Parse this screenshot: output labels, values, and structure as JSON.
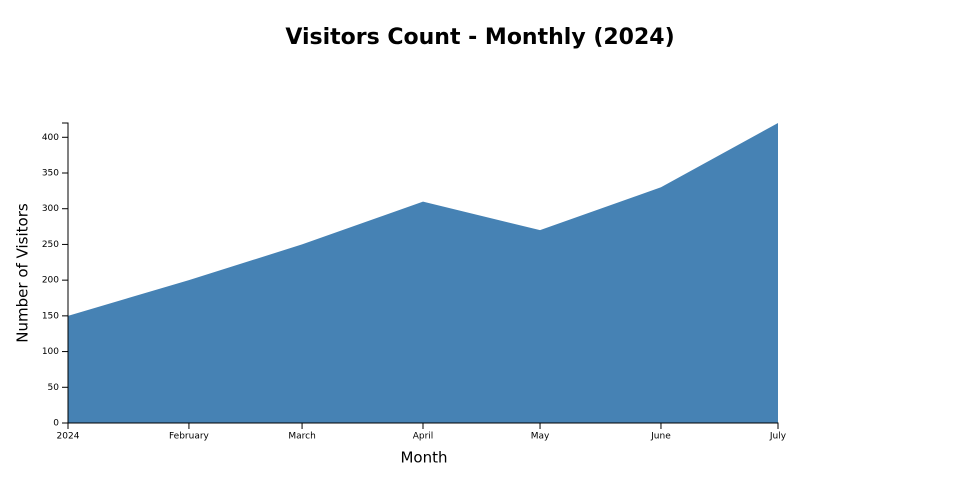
{
  "chart_data": {
    "type": "area",
    "title": "Visitors Count - Monthly (2024)",
    "x_label": "Month",
    "y_label": "Number of Visitors",
    "x": [
      "2024-01",
      "2024-02",
      "2024-03",
      "2024-04",
      "2024-05",
      "2024-06",
      "2024-07"
    ],
    "values": [
      150,
      200,
      250,
      310,
      270,
      330,
      420
    ],
    "color": "#4682b4",
    "xlim": [
      "2024-01",
      "2024-07"
    ],
    "xticks": [
      {
        "value": "2024-01",
        "label": "2024"
      },
      {
        "value": "2024-02",
        "label": "February"
      },
      {
        "value": "2024-03",
        "label": "March"
      },
      {
        "value": "2024-04",
        "label": "April"
      },
      {
        "value": "2024-05",
        "label": "May"
      },
      {
        "value": "2024-06",
        "label": "June"
      },
      {
        "value": "2024-07",
        "label": "July"
      }
    ],
    "ylim": [
      0,
      420
    ],
    "yticks": [
      0,
      50,
      100,
      150,
      200,
      250,
      300,
      350,
      400
    ]
  }
}
